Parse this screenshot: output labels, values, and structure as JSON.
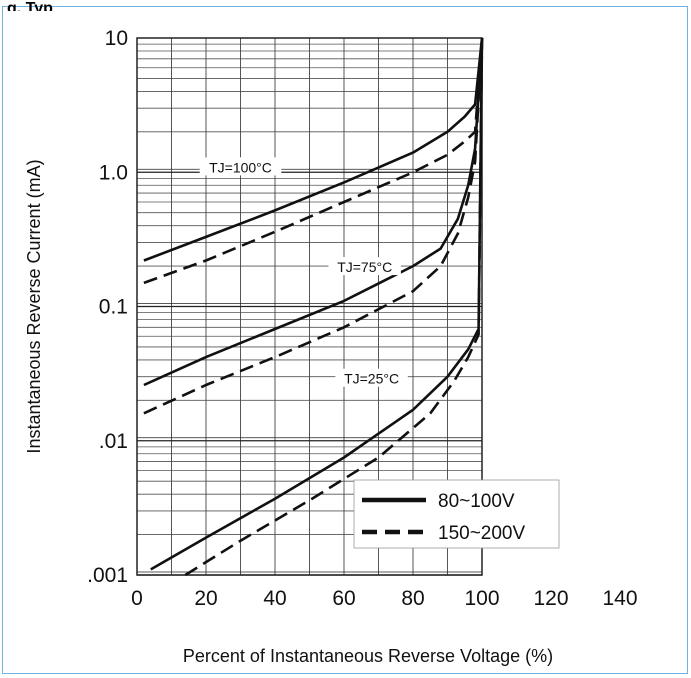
{
  "header": {
    "title_fragment": "g. Typ"
  },
  "chart_data": {
    "type": "line",
    "xlabel": "Percent of Instantaneous Reverse Voltage (%)",
    "ylabel": "Instantaneous Reverse Current (mA)",
    "xlim": [
      0,
      140
    ],
    "ylim": [
      0.001,
      10
    ],
    "yscale": "log",
    "x_ticks": [
      0,
      20,
      40,
      60,
      80,
      100,
      120,
      140
    ],
    "y_ticks": [
      {
        "value": 0.001,
        "label": ".001"
      },
      {
        "value": 0.01,
        "label": ".01"
      },
      {
        "value": 0.1,
        "label": "0.1"
      },
      {
        "value": 1,
        "label": "1.0"
      },
      {
        "value": 10,
        "label": "10"
      }
    ],
    "grid": true,
    "legend": {
      "placement": "bottom-right",
      "entries": [
        {
          "label": "80~100V",
          "style": "solid"
        },
        {
          "label": "150~200V",
          "style": "dashed"
        }
      ]
    },
    "annotations": [
      {
        "text": "TJ=100°C",
        "x": 30,
        "y": 1.05
      },
      {
        "text": "TJ=75°C",
        "x": 66,
        "y": 0.19
      },
      {
        "text": "TJ=25°C",
        "x": 68,
        "y": 0.028
      }
    ],
    "series": [
      {
        "style": "solid",
        "group": "TJ=100°C",
        "x": [
          2,
          20,
          40,
          60,
          80,
          90,
          95,
          98,
          100
        ],
        "y": [
          0.22,
          0.33,
          0.52,
          0.84,
          1.4,
          2.0,
          2.6,
          3.2,
          10
        ]
      },
      {
        "style": "dashed",
        "group": "TJ=100°C",
        "x": [
          2,
          20,
          40,
          60,
          80,
          90,
          95,
          98,
          100
        ],
        "y": [
          0.15,
          0.22,
          0.36,
          0.6,
          1.0,
          1.35,
          1.7,
          2.0,
          10
        ]
      },
      {
        "style": "solid",
        "group": "TJ=75°C",
        "x": [
          2,
          20,
          40,
          60,
          80,
          88,
          93,
          96,
          98,
          100
        ],
        "y": [
          0.026,
          0.042,
          0.068,
          0.11,
          0.2,
          0.27,
          0.45,
          0.8,
          1.5,
          10
        ]
      },
      {
        "style": "dashed",
        "group": "TJ=75°C",
        "x": [
          2,
          20,
          40,
          60,
          80,
          88,
          93,
          96,
          98,
          100
        ],
        "y": [
          0.016,
          0.026,
          0.042,
          0.07,
          0.13,
          0.2,
          0.35,
          0.65,
          1.2,
          10
        ]
      },
      {
        "style": "solid",
        "group": "TJ=25°C",
        "x": [
          4,
          20,
          40,
          60,
          80,
          90,
          96,
          99,
          100
        ],
        "y": [
          0.0011,
          0.0019,
          0.0037,
          0.0075,
          0.017,
          0.03,
          0.048,
          0.068,
          10
        ]
      },
      {
        "style": "dashed",
        "group": "TJ=25°C",
        "x": [
          14,
          30,
          50,
          70,
          85,
          92,
          96,
          99,
          100
        ],
        "y": [
          0.001,
          0.0018,
          0.0036,
          0.0075,
          0.016,
          0.028,
          0.042,
          0.062,
          10
        ]
      }
    ]
  }
}
